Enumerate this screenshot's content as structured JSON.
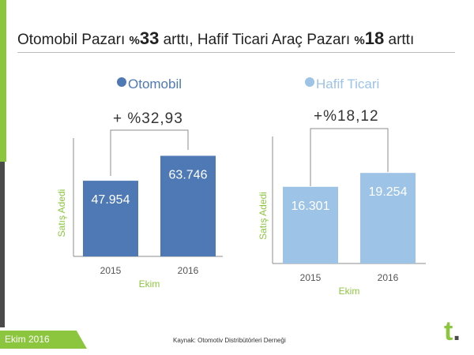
{
  "title": {
    "part1": "Otomobil Pazarı ",
    "pct1": "%",
    "num1": "33",
    "part2": " arttı, Hafif Ticari Araç Pazarı ",
    "pct2": "%",
    "num2": "18",
    "part3": " arttı"
  },
  "colors": {
    "otomobil": "#4e79b5",
    "hafif_ticari": "#9dc3e6",
    "accent_green": "#8cc63f"
  },
  "footer": {
    "tag": "Ekim 2016",
    "source": "Kaynak: Otomotiv Distribütörleri Derneği",
    "logo_letter": "t",
    "logo_dot": "."
  },
  "chart_data": [
    {
      "type": "bar",
      "legend": "Otomobil",
      "change_label": "+ %32,93",
      "categories": [
        "2015",
        "2016"
      ],
      "values": [
        47954,
        63746
      ],
      "value_labels": [
        "47.954",
        "63.746"
      ],
      "xlabel": "Ekim",
      "ylabel": "Satış Adedi",
      "ylim": [
        0,
        75000
      ],
      "grid": false
    },
    {
      "type": "bar",
      "legend": "Hafif Ticari",
      "change_label": "+%18,12",
      "categories": [
        "2015",
        "2016"
      ],
      "values": [
        16301,
        19254
      ],
      "value_labels": [
        "16.301",
        "19.254"
      ],
      "xlabel": "Ekim",
      "ylabel": "Satış Adedi",
      "ylim": [
        0,
        27000
      ],
      "grid": false
    }
  ]
}
